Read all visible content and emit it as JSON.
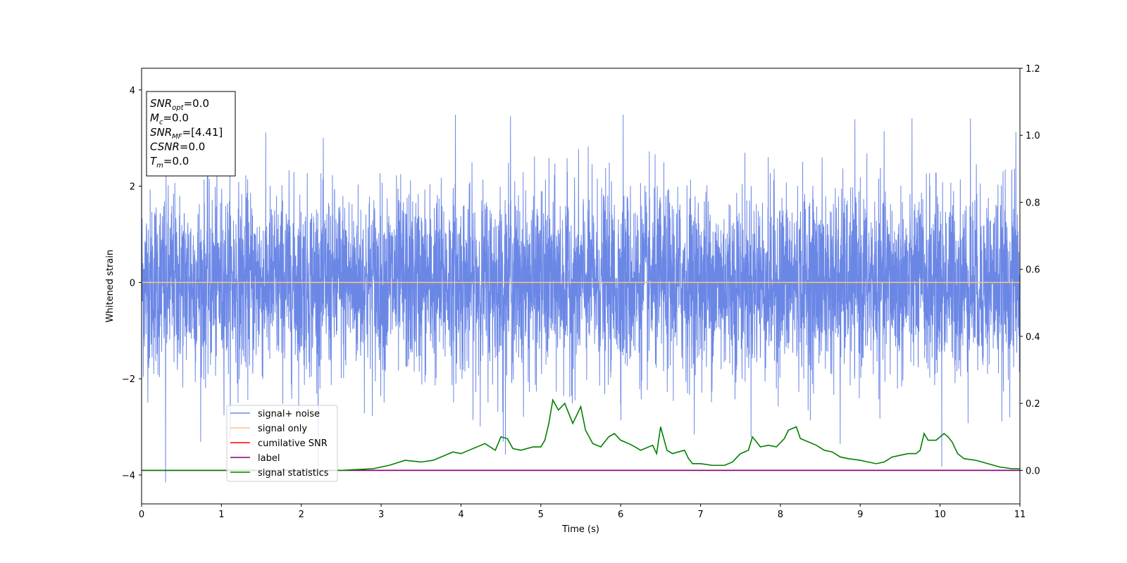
{
  "chart_data": {
    "type": "line",
    "xlabel": "Time (s)",
    "ylabel": "Whitened strain",
    "xlim": [
      0,
      11
    ],
    "ylim": [
      -4.6,
      4.45
    ],
    "y2lim": [
      -0.1,
      1.2
    ],
    "x_ticks": [
      "0",
      "1",
      "2",
      "3",
      "4",
      "5",
      "6",
      "7",
      "8",
      "9",
      "10",
      "11"
    ],
    "y_ticks": [
      "4",
      "2",
      "0",
      "−2",
      "−4"
    ],
    "y_tick_values": [
      4,
      2,
      0,
      -2,
      -4
    ],
    "y2_ticks": [
      "1.2",
      "1.0",
      "0.8",
      "0.6",
      "0.4",
      "0.2",
      "0.0"
    ],
    "y2_tick_values": [
      1.2,
      1.0,
      0.8,
      0.6,
      0.4,
      0.2,
      0.0
    ],
    "grid": false,
    "legend_position": "lower-left",
    "info_box": {
      "lines": [
        {
          "base": "SNR",
          "sub": "opt",
          "value": "=0.0"
        },
        {
          "base": "M",
          "sub": "c",
          "value": "=0.0"
        },
        {
          "base": "SNR",
          "sub": "MF",
          "value": "=[4.41]"
        },
        {
          "base": "CSNR",
          "sub": "",
          "value": "=0.0"
        },
        {
          "base": "T",
          "sub": "m",
          "value": "=0.0"
        }
      ]
    },
    "series": [
      {
        "name": "signal+ noise",
        "color": "#6b87e6",
        "axis": "left",
        "style": "noise",
        "description_range": [
          -4.2,
          3.5
        ],
        "spikes": [
          {
            "x": 0.3,
            "y": -4.15
          },
          {
            "x": 3.93,
            "y": 3.48
          },
          {
            "x": 4.62,
            "y": 3.45
          },
          {
            "x": 6.03,
            "y": 3.48
          },
          {
            "x": 10.38,
            "y": 3.4
          },
          {
            "x": 10.95,
            "y": 3.12
          },
          {
            "x": 10.02,
            "y": -3.82
          },
          {
            "x": 4.53,
            "y": -3.3
          },
          {
            "x": 8.75,
            "y": -3.35
          }
        ]
      },
      {
        "name": "signal only",
        "color": "#f5c77e",
        "axis": "left",
        "x": [
          0,
          11
        ],
        "y": [
          0,
          0
        ]
      },
      {
        "name": "cumilative SNR",
        "color": "#ff0000",
        "axis": "right",
        "x": [
          0,
          11
        ],
        "y": [
          0,
          0
        ]
      },
      {
        "name": "label",
        "color": "#800080",
        "axis": "right",
        "x": [
          0,
          11
        ],
        "y": [
          0,
          0
        ]
      },
      {
        "name": "signal statistics",
        "color": "#008000",
        "axis": "right",
        "x": [
          0,
          0.3,
          0.6,
          1.0,
          1.5,
          2.0,
          2.5,
          2.9,
          3.1,
          3.3,
          3.5,
          3.65,
          3.8,
          3.9,
          4.0,
          4.1,
          4.2,
          4.3,
          4.43,
          4.5,
          4.58,
          4.65,
          4.75,
          4.9,
          5.0,
          5.05,
          5.1,
          5.15,
          5.22,
          5.3,
          5.4,
          5.5,
          5.56,
          5.65,
          5.75,
          5.85,
          5.92,
          6.0,
          6.1,
          6.18,
          6.25,
          6.35,
          6.4,
          6.45,
          6.5,
          6.58,
          6.65,
          6.72,
          6.8,
          6.85,
          6.9,
          7.0,
          7.15,
          7.3,
          7.4,
          7.5,
          7.6,
          7.65,
          7.75,
          7.85,
          7.95,
          8.05,
          8.1,
          8.2,
          8.25,
          8.35,
          8.45,
          8.55,
          8.65,
          8.75,
          8.85,
          9.0,
          9.1,
          9.2,
          9.3,
          9.4,
          9.5,
          9.6,
          9.7,
          9.75,
          9.8,
          9.85,
          9.95,
          10.05,
          10.1,
          10.15,
          10.22,
          10.3,
          10.45,
          10.6,
          10.75,
          10.9,
          11.0
        ],
        "y": [
          0.0,
          0.0,
          0.0,
          0.0,
          0.0,
          0.0,
          0.0,
          0.005,
          0.015,
          0.03,
          0.025,
          0.03,
          0.045,
          0.055,
          0.05,
          0.06,
          0.07,
          0.08,
          0.06,
          0.1,
          0.095,
          0.065,
          0.06,
          0.07,
          0.07,
          0.09,
          0.14,
          0.21,
          0.18,
          0.2,
          0.14,
          0.19,
          0.12,
          0.08,
          0.07,
          0.1,
          0.11,
          0.09,
          0.08,
          0.07,
          0.06,
          0.07,
          0.075,
          0.05,
          0.13,
          0.06,
          0.05,
          0.055,
          0.06,
          0.035,
          0.02,
          0.02,
          0.015,
          0.015,
          0.025,
          0.05,
          0.06,
          0.1,
          0.07,
          0.075,
          0.07,
          0.095,
          0.12,
          0.13,
          0.095,
          0.085,
          0.075,
          0.06,
          0.055,
          0.04,
          0.035,
          0.03,
          0.025,
          0.02,
          0.025,
          0.04,
          0.045,
          0.05,
          0.05,
          0.06,
          0.11,
          0.09,
          0.09,
          0.11,
          0.1,
          0.085,
          0.05,
          0.035,
          0.03,
          0.02,
          0.01,
          0.005,
          0.005
        ]
      }
    ]
  }
}
